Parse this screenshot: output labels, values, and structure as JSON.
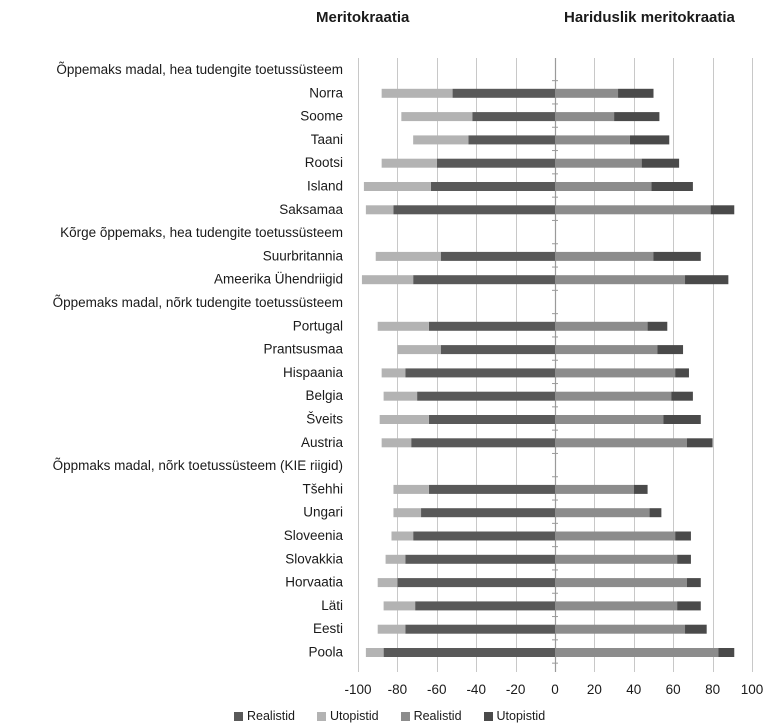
{
  "chart_data": {
    "type": "bar",
    "orientation": "horizontal",
    "stacking": "diverging",
    "panel_titles": [
      "Meritokraatia",
      "Hariduslik meritokraatia"
    ],
    "categories": [
      "Õppemaks madal, hea tudengite toetussüsteem",
      "Norra",
      "Soome",
      "Taani",
      "Rootsi",
      "Island",
      "Saksamaa",
      "Kõrge õppemaks, hea tudengite toetussüsteem",
      "Suurbritannia",
      "Ameerika Ühendriigid",
      "Õppemaks madal, nõrk tudengite toetussüsteem",
      "Portugal",
      "Prantsusmaa",
      "Hispaania",
      "Belgia",
      "Šveits",
      "Austria",
      "Õppmaks madal, nõrk toetussüsteem (KIE riigid)",
      "Tšehhi",
      "Ungari",
      "Sloveenia",
      "Slovakkia",
      "Horvaatia",
      "Läti",
      "Eesti",
      "Poola"
    ],
    "series": [
      {
        "name": "Realistid",
        "panel": "Meritokraatia",
        "color": "#595959",
        "values": [
          null,
          -52,
          -42,
          -44,
          -60,
          -63,
          -82,
          null,
          -58,
          -72,
          null,
          -64,
          -58,
          -76,
          -70,
          -64,
          -73,
          null,
          -64,
          -68,
          -72,
          -76,
          -80,
          -71,
          -76,
          -87
        ]
      },
      {
        "name": "Utopistid",
        "panel": "Meritokraatia",
        "color": "#b3b3b3",
        "values": [
          null,
          -36,
          -36,
          -28,
          -28,
          -34,
          -14,
          null,
          -33,
          -26,
          null,
          -26,
          -22,
          -12,
          -17,
          -25,
          -15,
          null,
          -18,
          -14,
          -11,
          -10,
          -10,
          -16,
          -14,
          -9
        ]
      },
      {
        "name": "Realistid",
        "panel": "Hariduslik meritokraatia",
        "color": "#8c8c8c",
        "values": [
          null,
          32,
          30,
          38,
          44,
          49,
          79,
          null,
          50,
          66,
          null,
          47,
          52,
          61,
          59,
          55,
          67,
          null,
          40,
          48,
          61,
          62,
          67,
          62,
          66,
          83
        ]
      },
      {
        "name": "Utopistid",
        "panel": "Hariduslik meritokraatia",
        "color": "#4a4a4a",
        "values": [
          null,
          18,
          23,
          20,
          19,
          21,
          12,
          null,
          24,
          22,
          null,
          10,
          13,
          7,
          11,
          19,
          13,
          null,
          7,
          6,
          8,
          7,
          7,
          12,
          11,
          8
        ]
      }
    ],
    "xlim": [
      -100,
      100
    ],
    "xticks": [
      "-100",
      "-80",
      "-60",
      "-40",
      "-20",
      "0",
      "20",
      "40",
      "60",
      "80",
      "100"
    ],
    "grid": "vertical",
    "legend": "bottom"
  }
}
